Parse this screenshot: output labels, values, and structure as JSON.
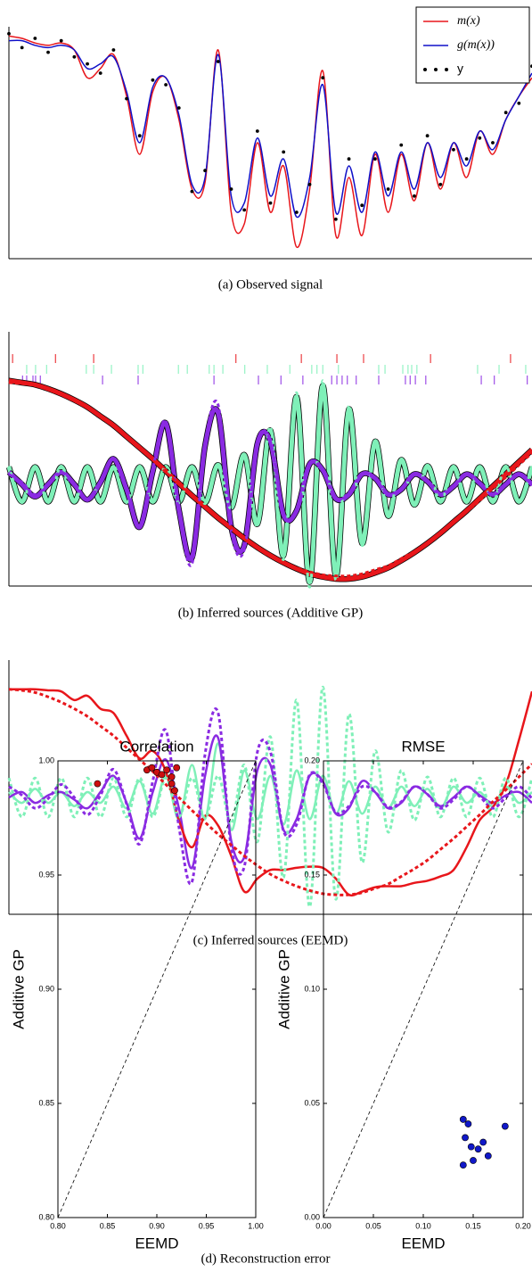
{
  "chart_data": [
    {
      "type": "line",
      "caption": "(a) Observed signal",
      "xlim": [
        0,
        100
      ],
      "ylim": [
        0,
        1
      ],
      "legend": "upper right",
      "x": [
        0,
        2.5,
        5,
        7.5,
        10,
        12.5,
        15,
        17.5,
        20,
        22.5,
        25,
        27.5,
        30,
        32.5,
        35,
        37.5,
        40,
        42.5,
        45,
        47.5,
        50,
        52.5,
        55,
        57.5,
        60,
        62.5,
        65,
        67.5,
        70,
        72.5,
        75,
        77.5,
        80,
        82.5,
        85,
        87.5,
        90,
        92.5,
        95,
        97.5,
        100
      ],
      "series": [
        {
          "name": "m(x)",
          "color": "#e8161b",
          "style": "solid",
          "values": [
            0.96,
            0.95,
            0.93,
            0.92,
            0.93,
            0.9,
            0.78,
            0.82,
            0.88,
            0.7,
            0.45,
            0.72,
            0.78,
            0.6,
            0.3,
            0.33,
            0.9,
            0.2,
            0.15,
            0.5,
            0.2,
            0.4,
            0.05,
            0.3,
            0.81,
            0.1,
            0.35,
            0.1,
            0.45,
            0.2,
            0.45,
            0.25,
            0.5,
            0.3,
            0.5,
            0.35,
            0.55,
            0.45,
            0.6,
            0.7,
            0.78
          ]
        },
        {
          "name": "g(m(x))",
          "color": "#1010c8",
          "style": "solid",
          "values": [
            0.94,
            0.94,
            0.92,
            0.91,
            0.92,
            0.9,
            0.82,
            0.84,
            0.87,
            0.72,
            0.5,
            0.74,
            0.78,
            0.62,
            0.32,
            0.35,
            0.88,
            0.27,
            0.24,
            0.52,
            0.27,
            0.43,
            0.18,
            0.35,
            0.75,
            0.2,
            0.4,
            0.2,
            0.46,
            0.27,
            0.46,
            0.3,
            0.5,
            0.35,
            0.5,
            0.4,
            0.55,
            0.47,
            0.6,
            0.7,
            0.8
          ]
        },
        {
          "name": "y",
          "color": "#000000",
          "style": "dots",
          "values": [
            0.97,
            0.91,
            0.95,
            0.89,
            0.94,
            0.87,
            0.84,
            0.8,
            0.9,
            0.69,
            0.53,
            0.77,
            0.75,
            0.65,
            0.29,
            0.38,
            0.85,
            0.3,
            0.21,
            0.55,
            0.24,
            0.46,
            0.2,
            0.32,
            0.78,
            0.17,
            0.43,
            0.23,
            0.43,
            0.3,
            0.49,
            0.27,
            0.53,
            0.32,
            0.47,
            0.43,
            0.52,
            0.5,
            0.63,
            0.67,
            0.83
          ]
        }
      ]
    },
    {
      "type": "line",
      "caption": "(b) Inferred sources (Additive GP)",
      "xlim": [
        0,
        100
      ],
      "ylim": [
        -1,
        1.5
      ],
      "x": [
        0,
        2.5,
        5,
        7.5,
        10,
        12.5,
        15,
        17.5,
        20,
        22.5,
        25,
        27.5,
        30,
        32.5,
        35,
        37.5,
        40,
        42.5,
        45,
        47.5,
        50,
        52.5,
        55,
        57.5,
        60,
        62.5,
        65,
        67.5,
        70,
        72.5,
        75,
        77.5,
        80,
        82.5,
        85,
        87.5,
        90,
        92.5,
        95,
        97.5,
        100
      ],
      "events": [
        {
          "color": "#e8161b",
          "x": [
            0.7,
            8.9,
            16.2,
            43.4,
            55.9,
            62.7,
            67.8,
            80.6,
            95.9
          ]
        },
        {
          "color": "#7ff0b8",
          "x": [
            3.4,
            5.1,
            7.2,
            14.8,
            16.2,
            19.6,
            24.7,
            25.6,
            32.4,
            34.1,
            38.3,
            39.2,
            40.9,
            45.1,
            49.4,
            53.7,
            57.9,
            58.9,
            60,
            63,
            70.7,
            71.9,
            75.3,
            76.3,
            77,
            78,
            89.6,
            93.7,
            98.8
          ]
        },
        {
          "color": "#8a2be2",
          "x": [
            2.6,
            3.4,
            4.6,
            5.1,
            6,
            17.9,
            24.7,
            39.2,
            47.7,
            52,
            56.2,
            61.7,
            62.7,
            63.7,
            64.7,
            66.4,
            70.7,
            75.8,
            76.7,
            77.7,
            79.7,
            90.3,
            92.8,
            99.1
          ]
        }
      ],
      "series": [
        {
          "color": "#7ff0b8",
          "style": "band",
          "values": [
            0.17,
            -0.17,
            0.17,
            -0.17,
            0.17,
            -0.17,
            0.17,
            -0.17,
            0.17,
            -0.17,
            0.17,
            -0.17,
            0.17,
            -0.17,
            0.17,
            -0.18,
            0.19,
            -0.23,
            0.29,
            -0.39,
            0.53,
            -0.7,
            0.86,
            -0.96,
            0.97,
            -0.9,
            0.74,
            -0.58,
            0.42,
            -0.31,
            0.24,
            -0.2,
            0.18,
            -0.17,
            0.17,
            -0.17,
            0.17,
            -0.17,
            0.17,
            -0.17,
            0.17
          ]
        },
        {
          "color": "#8a2be2",
          "style": "band",
          "values": [
            0.12,
            0.0,
            -0.12,
            0.0,
            0.12,
            0.0,
            -0.15,
            0.02,
            0.25,
            -0.05,
            -0.42,
            0.13,
            0.6,
            -0.25,
            -0.72,
            0.38,
            0.7,
            -0.42,
            -0.6,
            0.4,
            0.42,
            -0.3,
            -0.26,
            0.2,
            0.14,
            -0.14,
            -0.1,
            0.1,
            0.06,
            -0.1,
            -0.05,
            0.1,
            0.03,
            -0.1,
            -0.02,
            0.1,
            0.01,
            -0.1,
            0.0,
            0.1,
            0.0
          ]
        },
        {
          "color": "#e8161b",
          "style": "band",
          "values": [
            1.02,
            1.0,
            0.98,
            0.94,
            0.89,
            0.83,
            0.76,
            0.67,
            0.58,
            0.47,
            0.36,
            0.25,
            0.13,
            0.01,
            -0.11,
            -0.22,
            -0.33,
            -0.43,
            -0.53,
            -0.62,
            -0.7,
            -0.77,
            -0.83,
            -0.88,
            -0.91,
            -0.93,
            -0.93,
            -0.91,
            -0.87,
            -0.82,
            -0.75,
            -0.67,
            -0.58,
            -0.48,
            -0.37,
            -0.26,
            -0.14,
            -0.02,
            0.1,
            0.22,
            0.34
          ]
        },
        {
          "color": "#7ff0b8",
          "style": "dashed",
          "values": [
            0.18,
            -0.18,
            0.18,
            -0.18,
            0.18,
            -0.18,
            0.18,
            -0.18,
            0.18,
            -0.18,
            0.18,
            -0.18,
            0.18,
            -0.18,
            0.18,
            -0.19,
            0.2,
            -0.24,
            0.3,
            -0.41,
            0.56,
            -0.74,
            0.9,
            -1.01,
            1.02,
            -0.94,
            0.77,
            -0.6,
            0.43,
            -0.32,
            0.25,
            -0.21,
            0.19,
            -0.18,
            0.18,
            -0.18,
            0.18,
            -0.18,
            0.18,
            -0.18,
            0.18
          ]
        },
        {
          "color": "#8a2be2",
          "style": "dashed",
          "values": [
            0.1,
            0.02,
            -0.1,
            -0.01,
            0.12,
            0.0,
            -0.16,
            0.02,
            0.26,
            -0.06,
            -0.43,
            0.15,
            0.62,
            -0.27,
            -0.78,
            0.4,
            0.78,
            -0.46,
            -0.64,
            0.42,
            0.42,
            -0.31,
            -0.25,
            0.21,
            0.13,
            -0.14,
            -0.08,
            0.1,
            0.05,
            -0.09,
            -0.04,
            0.1,
            0.03,
            -0.1,
            -0.02,
            0.1,
            0.01,
            -0.1,
            0.0,
            0.1,
            -0.01
          ]
        },
        {
          "color": "#e8161b",
          "style": "dashed",
          "values": [
            1.0,
            0.99,
            0.97,
            0.93,
            0.88,
            0.82,
            0.75,
            0.66,
            0.57,
            0.46,
            0.35,
            0.24,
            0.12,
            0.0,
            -0.12,
            -0.23,
            -0.34,
            -0.44,
            -0.54,
            -0.63,
            -0.71,
            -0.77,
            -0.82,
            -0.86,
            -0.89,
            -0.9,
            -0.9,
            -0.88,
            -0.84,
            -0.8,
            -0.73,
            -0.66,
            -0.58,
            -0.48,
            -0.38,
            -0.27,
            -0.16,
            -0.04,
            0.07,
            0.19,
            0.31
          ]
        }
      ]
    },
    {
      "type": "line",
      "caption": "(c) Inferred sources (EEMD)",
      "xlim": [
        0,
        100
      ],
      "ylim": [
        -1.08,
        1.27
      ],
      "x": [
        0,
        2.5,
        5,
        7.5,
        10,
        12.5,
        15,
        17.5,
        20,
        22.5,
        25,
        27.5,
        30,
        32.5,
        35,
        37.5,
        40,
        42.5,
        45,
        47.5,
        50,
        52.5,
        55,
        57.5,
        60,
        62.5,
        65,
        67.5,
        70,
        72.5,
        75,
        77.5,
        80,
        82.5,
        85,
        87.5,
        90,
        92.5,
        95,
        97.5,
        100
      ],
      "series": [
        {
          "color": "#7ff0b8",
          "style": "solid",
          "values": [
            0.05,
            -0.05,
            0.08,
            -0.05,
            0.05,
            -0.08,
            0.05,
            -0.05,
            0.1,
            -0.1,
            0.15,
            -0.15,
            0.2,
            -0.2,
            0.3,
            -0.2,
            0.5,
            -0.3,
            0.25,
            -0.2,
            0.2,
            -0.25,
            0.25,
            -0.2,
            0.2,
            -0.15,
            0.15,
            -0.15,
            0.1,
            -0.1,
            0.1,
            -0.08,
            0.08,
            -0.1,
            0.1,
            -0.05,
            0.05,
            -0.08,
            0.1,
            -0.05,
            0.05
          ]
        },
        {
          "color": "#8a2be2",
          "style": "solid",
          "values": [
            0.0,
            0.05,
            -0.05,
            0.02,
            0.05,
            -0.02,
            -0.1,
            0.05,
            0.2,
            -0.05,
            -0.38,
            0.05,
            0.35,
            -0.1,
            -0.65,
            0.2,
            0.55,
            -0.4,
            -0.55,
            0.25,
            0.3,
            -0.3,
            -0.2,
            0.2,
            0.15,
            -0.15,
            -0.1,
            0.15,
            0.05,
            -0.1,
            -0.05,
            0.1,
            0.03,
            -0.08,
            0.0,
            0.1,
            0.02,
            -0.05,
            0.02,
            0.05,
            -0.05
          ]
        },
        {
          "color": "#e8161b",
          "style": "solid",
          "values": [
            1.0,
            1.0,
            1.0,
            0.99,
            0.98,
            0.9,
            0.94,
            0.82,
            0.78,
            0.57,
            0.36,
            0.43,
            0.24,
            -0.21,
            -0.46,
            -0.17,
            -0.26,
            -0.54,
            -0.87,
            -0.75,
            -0.67,
            -0.67,
            -0.65,
            -0.64,
            -0.65,
            -0.75,
            -0.9,
            -0.87,
            -0.83,
            -0.82,
            -0.82,
            -0.79,
            -0.77,
            -0.73,
            -0.67,
            -0.46,
            -0.21,
            -0.09,
            0.12,
            0.53,
            0.98
          ]
        },
        {
          "color": "#7ff0b8",
          "style": "dashed",
          "values": [
            0.18,
            -0.18,
            0.18,
            -0.18,
            0.18,
            -0.18,
            0.18,
            -0.18,
            0.18,
            -0.18,
            0.18,
            -0.18,
            0.18,
            -0.18,
            0.18,
            -0.19,
            0.2,
            -0.24,
            0.3,
            -0.41,
            0.56,
            -0.74,
            0.9,
            -1.01,
            1.02,
            -0.94,
            0.77,
            -0.6,
            0.43,
            -0.32,
            0.25,
            -0.21,
            0.19,
            -0.18,
            0.18,
            -0.18,
            0.18,
            -0.18,
            0.18,
            -0.18,
            0.18
          ]
        },
        {
          "color": "#8a2be2",
          "style": "dashed",
          "values": [
            0.1,
            0.02,
            -0.1,
            -0.01,
            0.12,
            0.0,
            -0.16,
            0.02,
            0.26,
            -0.06,
            -0.43,
            0.15,
            0.62,
            -0.27,
            -0.78,
            0.4,
            0.78,
            -0.46,
            -0.64,
            0.42,
            0.42,
            -0.31,
            -0.25,
            0.21,
            0.13,
            -0.14,
            -0.08,
            0.1,
            0.05,
            -0.09,
            -0.04,
            0.1,
            0.03,
            -0.1,
            -0.02,
            0.1,
            0.01,
            -0.1,
            0.0,
            0.1,
            -0.01
          ]
        },
        {
          "color": "#e8161b",
          "style": "dashed",
          "values": [
            1.0,
            0.99,
            0.97,
            0.93,
            0.88,
            0.82,
            0.75,
            0.66,
            0.57,
            0.46,
            0.35,
            0.24,
            0.12,
            0.0,
            -0.12,
            -0.23,
            -0.34,
            -0.44,
            -0.54,
            -0.63,
            -0.71,
            -0.77,
            -0.82,
            -0.86,
            -0.89,
            -0.9,
            -0.9,
            -0.88,
            -0.84,
            -0.8,
            -0.73,
            -0.66,
            -0.58,
            -0.48,
            -0.38,
            -0.27,
            -0.16,
            -0.04,
            0.07,
            0.19,
            0.31
          ]
        }
      ]
    },
    {
      "type": "scatter",
      "title": "Correlation",
      "caption": "(d) Reconstruction error",
      "xlabel": "EEMD",
      "ylabel": "Additive GP",
      "xlim": [
        0.8,
        1
      ],
      "ylim": [
        0.8,
        1
      ],
      "xticks": [
        {
          "value": 0.8,
          "label": "0.80"
        },
        0.85,
        {
          "value": 0.9,
          "label": "0.90"
        },
        0.95,
        {
          "value": 1,
          "label": "1.00"
        }
      ],
      "yticks": [
        {
          "value": 0.8,
          "label": "0.80"
        },
        0.85,
        {
          "value": 0.9,
          "label": "0.90"
        },
        0.95,
        {
          "value": 1,
          "label": "1.00"
        }
      ],
      "series": [
        {
          "color": "#cc1010",
          "x": [
            0.84,
            0.89,
            0.895,
            0.9,
            0.905,
            0.91,
            0.915,
            0.915,
            0.92,
            0.918
          ],
          "values": [
            0.99,
            0.996,
            0.997,
            0.995,
            0.994,
            0.996,
            0.99,
            0.993,
            0.997,
            0.987
          ]
        }
      ]
    },
    {
      "type": "scatter",
      "title": "RMSE",
      "xlabel": "EEMD",
      "ylabel": "Additive GP",
      "xlim": [
        0,
        0.2
      ],
      "ylim": [
        0,
        0.2
      ],
      "xticks": [
        {
          "value": 0,
          "label": "0.00"
        },
        0.05,
        {
          "value": 0.1,
          "label": "0.10"
        },
        0.15,
        {
          "value": 0.2,
          "label": "0.20"
        }
      ],
      "yticks": [
        {
          "value": 0,
          "label": "0.00"
        },
        0.05,
        {
          "value": 0.1,
          "label": "0.10"
        },
        0.15,
        {
          "value": 0.2,
          "label": "0.20"
        }
      ],
      "series": [
        {
          "color": "#1018c8",
          "x": [
            0.14,
            0.142,
            0.145,
            0.14,
            0.15,
            0.155,
            0.16,
            0.165,
            0.148,
            0.182
          ],
          "values": [
            0.043,
            0.035,
            0.041,
            0.023,
            0.025,
            0.03,
            0.033,
            0.027,
            0.031,
            0.04
          ]
        }
      ]
    }
  ]
}
